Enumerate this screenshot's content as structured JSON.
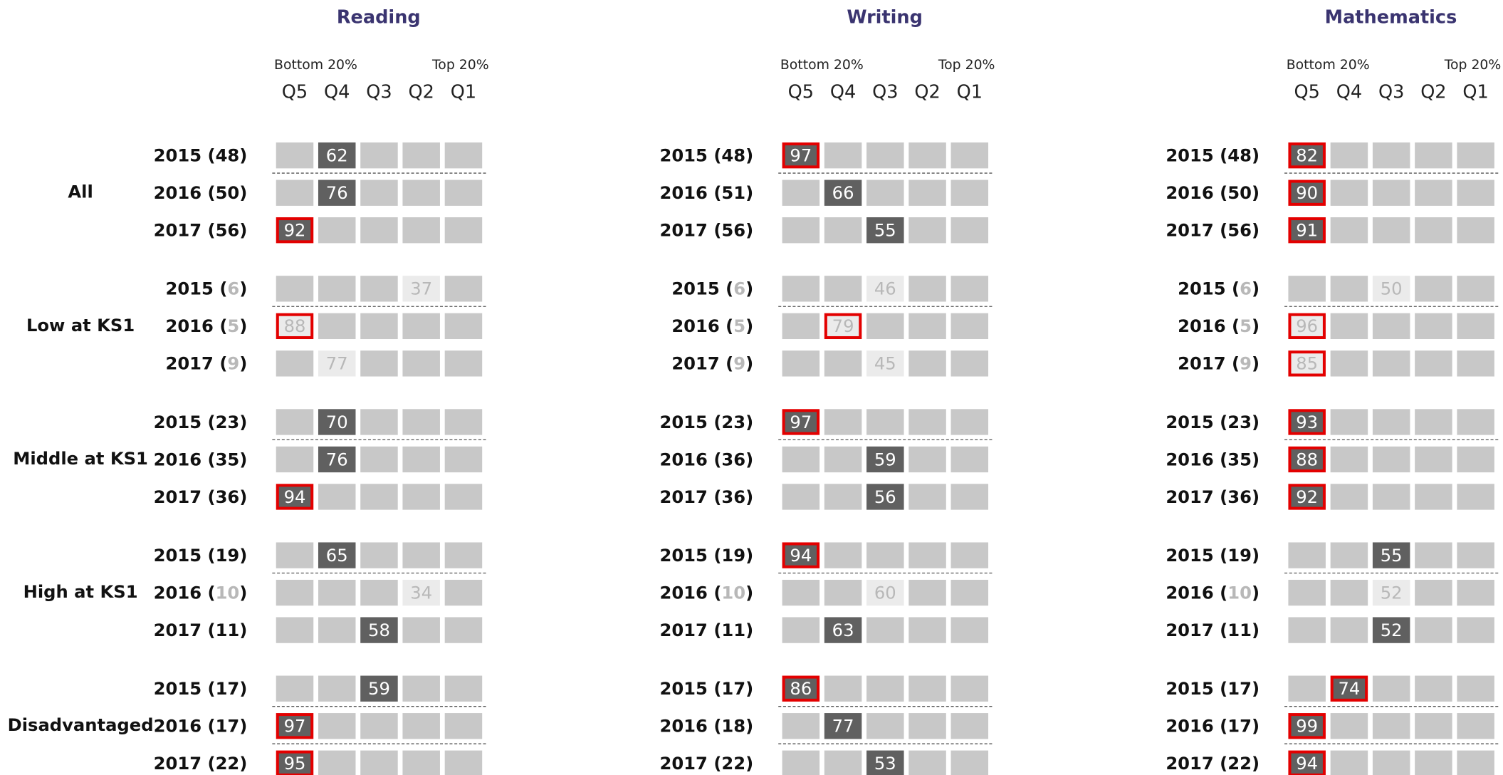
{
  "quintiles": [
    "Q5",
    "Q4",
    "Q3",
    "Q2",
    "Q1"
  ],
  "bottom_label": "Bottom 20%",
  "top_label": "Top 20%",
  "groups": [
    "All",
    "Low at KS1",
    "Middle at KS1",
    "High at KS1",
    "Disadvantaged"
  ],
  "panels": [
    {
      "title": "Reading",
      "rows": [
        [
          {
            "year": 2015,
            "n": 48,
            "value": 62
          },
          {
            "year": 2016,
            "n": 50,
            "value": 76
          },
          {
            "year": 2017,
            "n": 56,
            "value": 92,
            "highlight": true
          }
        ],
        [
          {
            "year": 2015,
            "n": 6,
            "value": 37,
            "low_n": true
          },
          {
            "year": 2016,
            "n": 5,
            "value": 88,
            "highlight": true,
            "low_n": true
          },
          {
            "year": 2017,
            "n": 9,
            "value": 77,
            "low_n": true
          }
        ],
        [
          {
            "year": 2015,
            "n": 23,
            "value": 70
          },
          {
            "year": 2016,
            "n": 35,
            "value": 76
          },
          {
            "year": 2017,
            "n": 36,
            "value": 94,
            "highlight": true
          }
        ],
        [
          {
            "year": 2015,
            "n": 19,
            "value": 65
          },
          {
            "year": 2016,
            "n": 10,
            "value": 34,
            "low_n": true
          },
          {
            "year": 2017,
            "n": 11,
            "value": 58
          }
        ],
        [
          {
            "year": 2015,
            "n": 17,
            "value": 59
          },
          {
            "year": 2016,
            "n": 17,
            "value": 97,
            "highlight": true
          },
          {
            "year": 2017,
            "n": 22,
            "value": 95,
            "highlight": true
          }
        ]
      ]
    },
    {
      "title": "Writing",
      "rows": [
        [
          {
            "year": 2015,
            "n": 48,
            "value": 97,
            "highlight": true
          },
          {
            "year": 2016,
            "n": 51,
            "value": 66
          },
          {
            "year": 2017,
            "n": 56,
            "value": 55
          }
        ],
        [
          {
            "year": 2015,
            "n": 6,
            "value": 46,
            "low_n": true
          },
          {
            "year": 2016,
            "n": 5,
            "value": 79,
            "highlight": true,
            "low_n": true
          },
          {
            "year": 2017,
            "n": 9,
            "value": 45,
            "low_n": true
          }
        ],
        [
          {
            "year": 2015,
            "n": 23,
            "value": 97,
            "highlight": true
          },
          {
            "year": 2016,
            "n": 36,
            "value": 59
          },
          {
            "year": 2017,
            "n": 36,
            "value": 56
          }
        ],
        [
          {
            "year": 2015,
            "n": 19,
            "value": 94,
            "highlight": true
          },
          {
            "year": 2016,
            "n": 10,
            "value": 60,
            "low_n": true
          },
          {
            "year": 2017,
            "n": 11,
            "value": 63
          }
        ],
        [
          {
            "year": 2015,
            "n": 17,
            "value": 86,
            "highlight": true
          },
          {
            "year": 2016,
            "n": 18,
            "value": 77
          },
          {
            "year": 2017,
            "n": 22,
            "value": 53
          }
        ]
      ]
    },
    {
      "title": "Mathematics",
      "rows": [
        [
          {
            "year": 2015,
            "n": 48,
            "value": 82,
            "highlight": true
          },
          {
            "year": 2016,
            "n": 50,
            "value": 90,
            "highlight": true
          },
          {
            "year": 2017,
            "n": 56,
            "value": 91,
            "highlight": true
          }
        ],
        [
          {
            "year": 2015,
            "n": 6,
            "value": 50,
            "low_n": true
          },
          {
            "year": 2016,
            "n": 5,
            "value": 96,
            "highlight": true,
            "low_n": true
          },
          {
            "year": 2017,
            "n": 9,
            "value": 85,
            "highlight": true,
            "low_n": true
          }
        ],
        [
          {
            "year": 2015,
            "n": 23,
            "value": 93,
            "highlight": true
          },
          {
            "year": 2016,
            "n": 35,
            "value": 88,
            "highlight": true
          },
          {
            "year": 2017,
            "n": 36,
            "value": 92,
            "highlight": true
          }
        ],
        [
          {
            "year": 2015,
            "n": 19,
            "value": 55
          },
          {
            "year": 2016,
            "n": 10,
            "value": 52,
            "low_n": true
          },
          {
            "year": 2017,
            "n": 11,
            "value": 52
          }
        ],
        [
          {
            "year": 2015,
            "n": 17,
            "value": 74,
            "highlight": true
          },
          {
            "year": 2016,
            "n": 17,
            "value": 99,
            "highlight": true
          },
          {
            "year": 2017,
            "n": 22,
            "value": 94,
            "highlight": true
          }
        ]
      ]
    }
  ]
}
